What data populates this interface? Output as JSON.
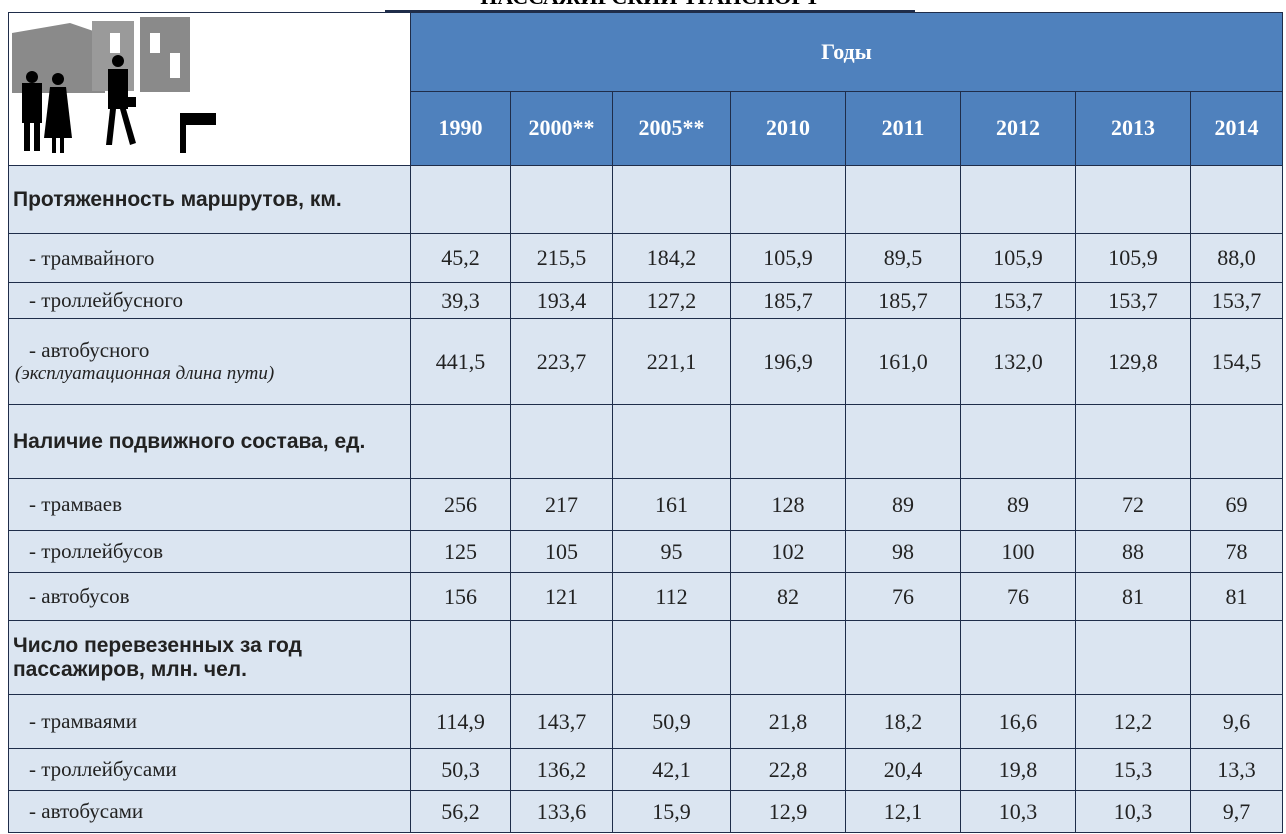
{
  "header": {
    "title": "ПАССАЖИРСКИЙ ТРАНСПОРТ",
    "group": "Годы",
    "years": [
      "1990",
      "2000**",
      "2005**",
      "2010",
      "2011",
      "2012",
      "2013",
      "2014"
    ]
  },
  "sections": [
    {
      "title": "Протяженность маршрутов, км.",
      "rows": [
        {
          "label": "- трамвайного",
          "values": [
            "45,2",
            "215,5",
            "184,2",
            "105,9",
            "89,5",
            "105,9",
            "105,9",
            "88,0"
          ]
        },
        {
          "label": "- троллейбусного",
          "values": [
            "39,3",
            "193,4",
            "127,2",
            "185,7",
            "185,7",
            "153,7",
            "153,7",
            "153,7"
          ]
        },
        {
          "label": "- автобусного",
          "note": "(эксплуатационная длина пути)",
          "values": [
            "441,5",
            "223,7",
            "221,1",
            "196,9",
            "161,0",
            "132,0",
            "129,8",
            "154,5"
          ]
        }
      ]
    },
    {
      "title": "Наличие подвижного состава, ед.",
      "rows": [
        {
          "label": "- трамваев",
          "values": [
            "256",
            "217",
            "161",
            "128",
            "89",
            "89",
            "72",
            "69"
          ]
        },
        {
          "label": "- троллейбусов",
          "values": [
            "125",
            "105",
            "95",
            "102",
            "98",
            "100",
            "88",
            "78"
          ]
        },
        {
          "label": "- автобусов",
          "values": [
            "156",
            "121",
            "112",
            "82",
            "76",
            "76",
            "81",
            "81"
          ]
        }
      ]
    },
    {
      "title": "Число перевезенных за год пассажиров, млн. чел.",
      "rows": [
        {
          "label": "- трамваями",
          "values": [
            "114,9",
            "143,7",
            "50,9",
            "21,8",
            "18,2",
            "16,6",
            "12,2",
            "9,6"
          ]
        },
        {
          "label": "- троллейбусами",
          "values": [
            "50,3",
            "136,2",
            "42,1",
            "22,8",
            "20,4",
            "19,8",
            "15,3",
            "13,3"
          ]
        },
        {
          "label": "- автобусами",
          "values": [
            "56,2",
            "133,6",
            "15,9",
            "12,9",
            "12,1",
            "10,3",
            "10,3",
            "9,7"
          ]
        }
      ]
    }
  ]
}
